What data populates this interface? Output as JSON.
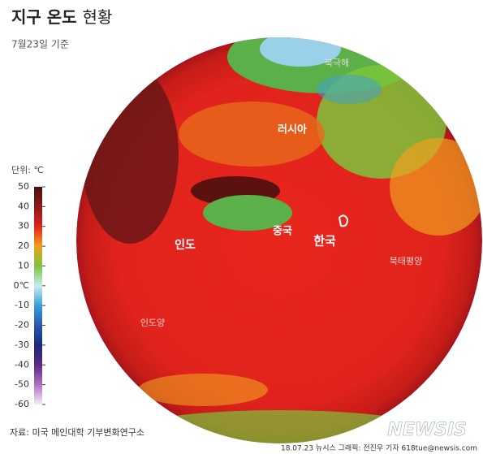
{
  "header": {
    "title_main": "지구 온도",
    "title_sub": "현황",
    "subtitle": "7월23일 기준"
  },
  "legend": {
    "unit": "단위: ℃",
    "ticks": [
      50,
      40,
      30,
      20,
      10,
      {
        "value": 0,
        "label": "0℃"
      },
      -10,
      -20,
      -30,
      -40,
      -50,
      -60
    ],
    "colors": [
      "#4a1010",
      "#8a1a1a",
      "#e0231c",
      "#f0a020",
      "#7cc43a",
      "#c8ecf0",
      "#3aa0d8",
      "#2a58b0",
      "#1c2a78",
      "#5a2a80",
      "#b070c0",
      "#f4eef6"
    ]
  },
  "map_labels": [
    "북극해",
    "러시아",
    "중국",
    "한국",
    "인도",
    "인도양",
    "북태평양"
  ],
  "footer": {
    "source": "자료: 미국 메인대학 기부변화연구소",
    "credit": "18.07.23 뉴시스 그래픽: 전진우 기자 618tue@newsis.com",
    "logo": "NEWSIS"
  }
}
